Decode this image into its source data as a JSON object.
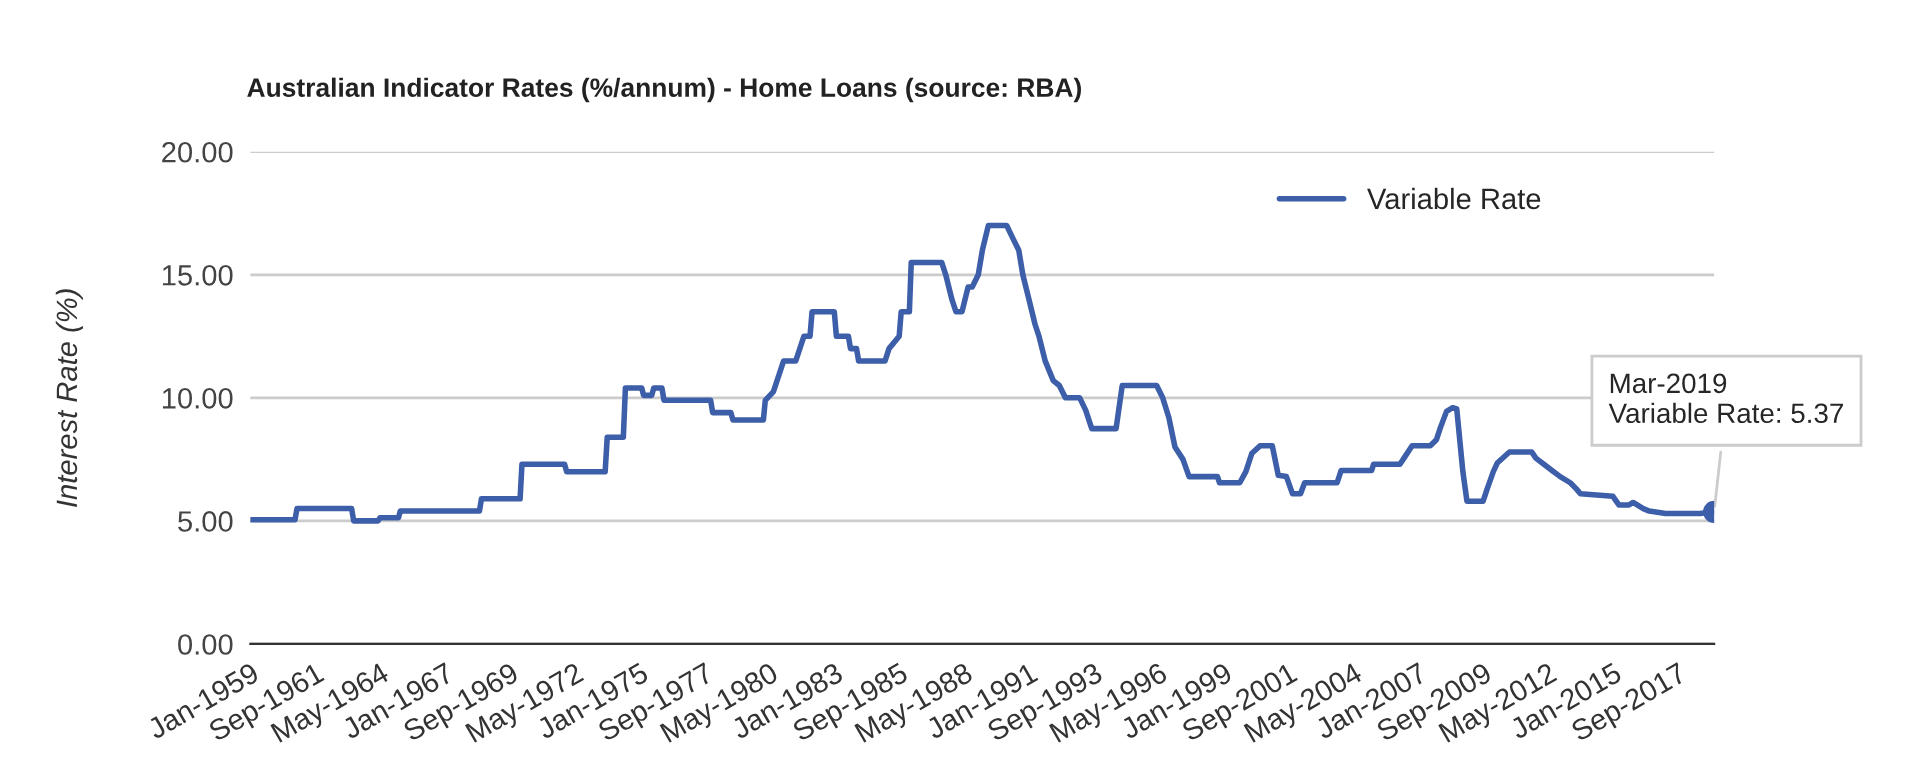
{
  "chart_data": {
    "type": "line",
    "title": "Australian Indicator Rates (%/annum) - Home Loans (source: RBA)",
    "ylabel": "Interest Rate (%)",
    "series": [
      {
        "name": "Variable Rate",
        "color": "#3d5ea8",
        "x": [
          "1959-01",
          "1960-11",
          "1960-12",
          "1963-03",
          "1963-04",
          "1964-04",
          "1964-05",
          "1965-02",
          "1965-03",
          "1968-06",
          "1968-07",
          "1970-02",
          "1970-03",
          "1971-12",
          "1972-01",
          "1973-08",
          "1973-09",
          "1974-05",
          "1974-06",
          "1975-02",
          "1975-03",
          "1975-07",
          "1975-08",
          "1975-12",
          "1976-01",
          "1977-12",
          "1978-01",
          "1978-10",
          "1978-11",
          "1980-02",
          "1980-03",
          "1980-07",
          "1980-12",
          "1981-06",
          "1981-08",
          "1981-10",
          "1982-01",
          "1982-02",
          "1983-01",
          "1983-02",
          "1983-08",
          "1983-09",
          "1983-12",
          "1984-01",
          "1985-02",
          "1985-04",
          "1985-09",
          "1985-10",
          "1986-02",
          "1986-03",
          "1987-06",
          "1987-08",
          "1987-11",
          "1988-01",
          "1988-04",
          "1988-07",
          "1988-09",
          "1988-12",
          "1989-02",
          "1989-05",
          "1990-02",
          "1990-05",
          "1990-08",
          "1990-10",
          "1991-01",
          "1991-04",
          "1991-06",
          "1991-09",
          "1992-01",
          "1992-04",
          "1992-07",
          "1993-02",
          "1993-05",
          "1993-08",
          "1994-08",
          "1994-11",
          "1996-04",
          "1996-07",
          "1996-10",
          "1997-01",
          "1997-05",
          "1997-08",
          "1998-10",
          "1998-11",
          "1999-09",
          "1999-12",
          "2000-03",
          "2000-07",
          "2001-01",
          "2001-04",
          "2001-08",
          "2001-11",
          "2002-03",
          "2002-05",
          "2003-09",
          "2003-11",
          "2005-02",
          "2005-03",
          "2006-04",
          "2006-06",
          "2006-10",
          "2007-07",
          "2007-10",
          "2007-12",
          "2008-03",
          "2008-06",
          "2008-08",
          "2008-11",
          "2009-01",
          "2009-09",
          "2009-11",
          "2010-02",
          "2010-04",
          "2010-10",
          "2011-09",
          "2011-11",
          "2012-03",
          "2012-07",
          "2012-11",
          "2013-04",
          "2013-07",
          "2013-09",
          "2015-01",
          "2015-04",
          "2015-09",
          "2015-11",
          "2016-04",
          "2016-07",
          "2017-03",
          "2018-08",
          "2019-03"
        ],
        "values": [
          5.05,
          5.05,
          5.5,
          5.5,
          5.0,
          5.0,
          5.13,
          5.13,
          5.4,
          5.4,
          5.9,
          5.9,
          7.3,
          7.3,
          7.0,
          7.0,
          8.4,
          8.4,
          10.4,
          10.4,
          10.1,
          10.1,
          10.4,
          10.4,
          9.9,
          9.9,
          9.4,
          9.4,
          9.1,
          9.1,
          9.9,
          10.25,
          11.5,
          11.5,
          12.0,
          12.5,
          12.5,
          13.5,
          13.5,
          12.5,
          12.5,
          12.0,
          12.0,
          11.5,
          11.5,
          12.0,
          12.5,
          13.5,
          13.5,
          15.5,
          15.5,
          15.0,
          14.0,
          13.5,
          13.5,
          14.5,
          14.5,
          15.0,
          16.0,
          17.0,
          17.0,
          16.5,
          16.0,
          15.0,
          14.0,
          13.0,
          12.5,
          11.5,
          10.7,
          10.5,
          10.0,
          10.0,
          9.5,
          8.75,
          8.75,
          10.5,
          10.5,
          10.0,
          9.2,
          8.0,
          7.5,
          6.8,
          6.8,
          6.55,
          6.55,
          7.0,
          7.75,
          8.05,
          8.05,
          6.85,
          6.8,
          6.1,
          6.1,
          6.55,
          6.55,
          7.05,
          7.05,
          7.3,
          7.3,
          7.55,
          8.05,
          8.05,
          8.3,
          8.8,
          9.45,
          9.6,
          9.55,
          7.0,
          5.8,
          5.8,
          6.3,
          7.0,
          7.35,
          7.8,
          7.8,
          7.55,
          7.3,
          7.05,
          6.8,
          6.55,
          6.3,
          6.1,
          6.0,
          5.65,
          5.65,
          5.75,
          5.5,
          5.4,
          5.3,
          5.3,
          5.37
        ]
      }
    ],
    "xlim": [
      "1959-01",
      "2019-03"
    ],
    "xticks": [
      {
        "value": "1959-01",
        "label": "Jan-1959"
      },
      {
        "value": "1961-09",
        "label": "Sep-1961"
      },
      {
        "value": "1964-05",
        "label": "May-1964"
      },
      {
        "value": "1967-01",
        "label": "Jan-1967"
      },
      {
        "value": "1969-09",
        "label": "Sep-1969"
      },
      {
        "value": "1972-05",
        "label": "May-1972"
      },
      {
        "value": "1975-01",
        "label": "Jan-1975"
      },
      {
        "value": "1977-09",
        "label": "Sep-1977"
      },
      {
        "value": "1980-05",
        "label": "May-1980"
      },
      {
        "value": "1983-01",
        "label": "Jan-1983"
      },
      {
        "value": "1985-09",
        "label": "Sep-1985"
      },
      {
        "value": "1988-05",
        "label": "May-1988"
      },
      {
        "value": "1991-01",
        "label": "Jan-1991"
      },
      {
        "value": "1993-09",
        "label": "Sep-1993"
      },
      {
        "value": "1996-05",
        "label": "May-1996"
      },
      {
        "value": "1999-01",
        "label": "Jan-1999"
      },
      {
        "value": "2001-09",
        "label": "Sep-2001"
      },
      {
        "value": "2004-05",
        "label": "May-2004"
      },
      {
        "value": "2007-01",
        "label": "Jan-2007"
      },
      {
        "value": "2009-09",
        "label": "Sep-2009"
      },
      {
        "value": "2012-05",
        "label": "May-2012"
      },
      {
        "value": "2015-01",
        "label": "Jan-2015"
      },
      {
        "value": "2017-09",
        "label": "Sep-2017"
      }
    ],
    "ylim": [
      0,
      20
    ],
    "yticks": [
      {
        "value": 0,
        "label": "0.00"
      },
      {
        "value": 5,
        "label": "5.00"
      },
      {
        "value": 10,
        "label": "10.00"
      },
      {
        "value": 15,
        "label": "15.00"
      },
      {
        "value": 20,
        "label": "20.00"
      }
    ],
    "grid": "y",
    "legend": "top right",
    "annotations": [
      {
        "text": "Mar-2019\nVariable Rate: 5.37",
        "x": "2019-03",
        "y": 5.37
      }
    ]
  }
}
